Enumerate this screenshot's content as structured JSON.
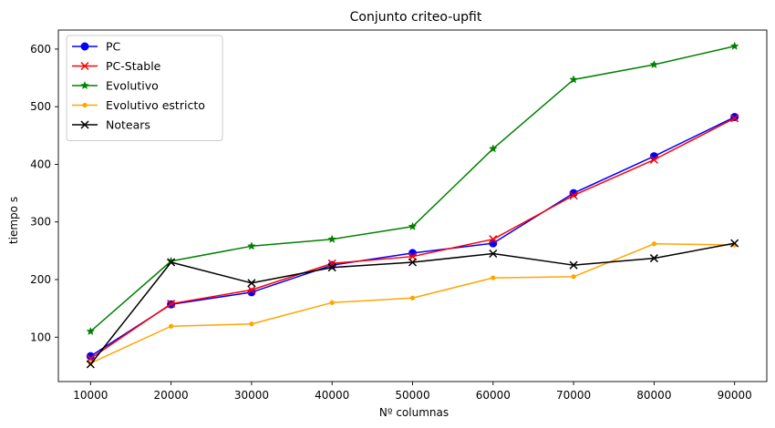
{
  "chart_data": {
    "type": "line",
    "title": "Conjunto criteo-upfit",
    "xlabel": "Nº columnas",
    "ylabel": "tiempo s",
    "x": [
      10000,
      20000,
      30000,
      40000,
      50000,
      60000,
      70000,
      80000,
      90000
    ],
    "xlim": [
      6000,
      94000
    ],
    "ylim": [
      23,
      633
    ],
    "xticks": [
      10000,
      20000,
      30000,
      40000,
      50000,
      60000,
      70000,
      80000,
      90000
    ],
    "yticks": [
      100,
      200,
      300,
      400,
      500,
      600
    ],
    "grid": false,
    "legend_position": "upper-left",
    "series": [
      {
        "name": "PC",
        "color": "#0000ff",
        "marker": "circle",
        "values": [
          67,
          157,
          178,
          225,
          246,
          263,
          350,
          414,
          482
        ]
      },
      {
        "name": "PC-Stable",
        "color": "#ff0000",
        "marker": "x",
        "values": [
          63,
          158,
          182,
          228,
          240,
          270,
          346,
          408,
          480
        ]
      },
      {
        "name": "Evolutivo",
        "color": "#008000",
        "marker": "star",
        "values": [
          110,
          232,
          258,
          270,
          292,
          427,
          547,
          573,
          605
        ]
      },
      {
        "name": "Evolutivo estricto",
        "color": "#ffa500",
        "marker": "point",
        "values": [
          55,
          119,
          123,
          160,
          168,
          203,
          205,
          262,
          260
        ]
      },
      {
        "name": "Notears",
        "color": "#000000",
        "marker": "x",
        "values": [
          53,
          230,
          194,
          221,
          230,
          245,
          225,
          237,
          263
        ]
      }
    ]
  }
}
